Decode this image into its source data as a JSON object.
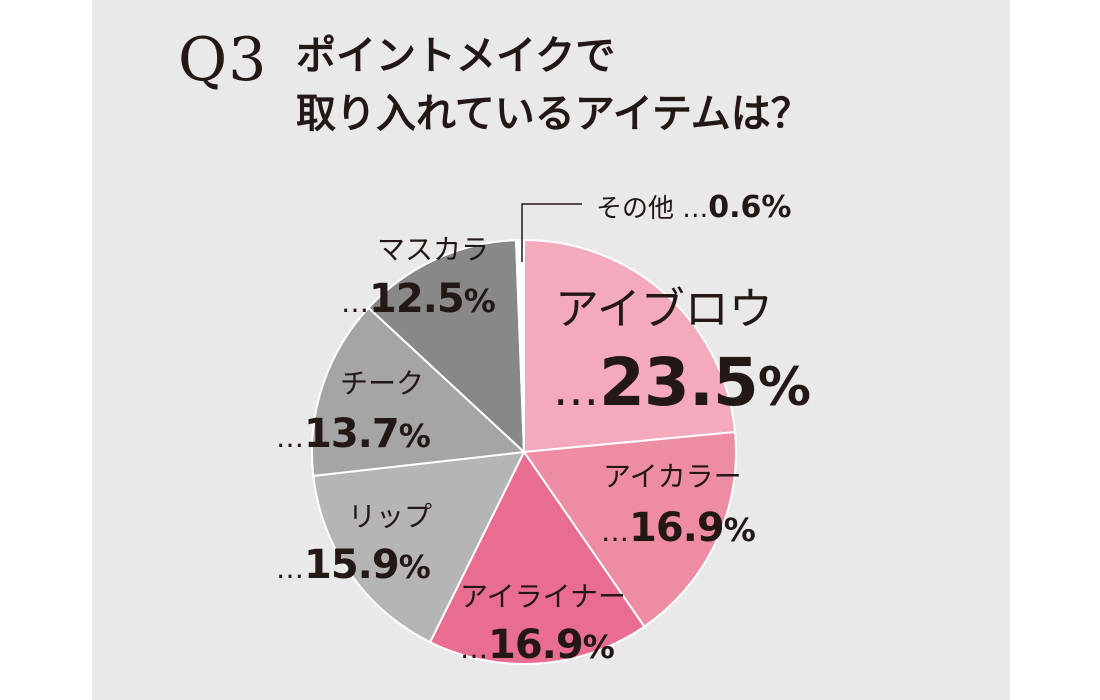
{
  "header": {
    "q_label": "Q3",
    "title_line_1": "ポイントメイクで",
    "title_line_2": "取り入れているアイテムは？"
  },
  "colors": {
    "background": "#e9e9e9",
    "text": "#231815"
  },
  "chart_data": {
    "type": "pie",
    "start_angle": "12 o'clock",
    "direction": "clockwise",
    "unit": "%",
    "slices": [
      {
        "name": "アイブロウ",
        "value": 23.5,
        "value_text": "23.5",
        "color": "#f4a9bd"
      },
      {
        "name": "アイカラー",
        "value": 16.9,
        "value_text": "16.9",
        "color": "#ee8ca3"
      },
      {
        "name": "アイライナー",
        "value": 16.9,
        "value_text": "16.9",
        "color": "#e96d91"
      },
      {
        "name": "リップ",
        "value": 15.9,
        "value_text": "15.9",
        "color": "#b5b5b5"
      },
      {
        "name": "チーク",
        "value": 13.7,
        "value_text": "13.7",
        "color": "#a5a5a5"
      },
      {
        "name": "マスカラ",
        "value": 12.5,
        "value_text": "12.5",
        "color": "#888888"
      },
      {
        "name": "その他",
        "value": 0.6,
        "value_text": "0.6",
        "color": "#ffffff"
      }
    ],
    "label_prefix": "…",
    "label_suffix": "%"
  }
}
